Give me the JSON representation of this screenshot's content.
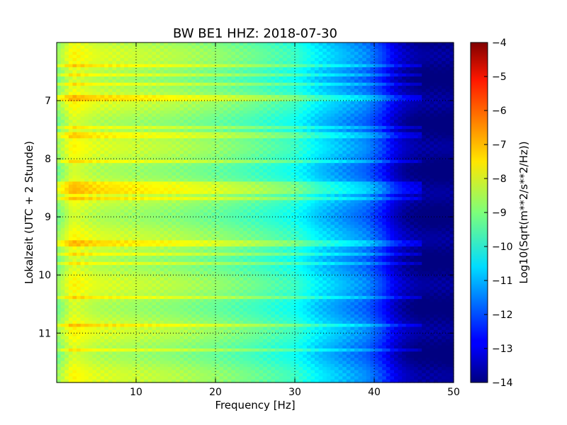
{
  "chart_data": {
    "type": "heatmap",
    "title": "BW BE1 HHZ: 2018-07-30",
    "xlabel": "Frequency [Hz]",
    "ylabel": "Lokalzeit (UTC + 2 Stunde)",
    "colorbar_label": "Log10(Sqrt(m**2/s**2/Hz))",
    "xlim": [
      0,
      50
    ],
    "ylim": [
      11.85,
      6.0
    ],
    "x_ticks": [
      10,
      20,
      30,
      40,
      50
    ],
    "y_ticks": [
      7,
      8,
      9,
      10,
      11
    ],
    "grid": true,
    "colormap": "jet",
    "color_range": [
      -14,
      -4
    ],
    "colorbar_ticks": [
      -4,
      -5,
      -6,
      -7,
      -8,
      -9,
      -10,
      -11,
      -12,
      -13,
      -14
    ],
    "spectrum_profile": {
      "frequency_hz": [
        0,
        2,
        5,
        10,
        15,
        20,
        25,
        30,
        33,
        36,
        39,
        41,
        42.5,
        44,
        46,
        50
      ],
      "log_amplitude": [
        -9.0,
        -7.9,
        -8.3,
        -8.5,
        -8.7,
        -9.0,
        -9.4,
        -9.9,
        -10.6,
        -11.1,
        -11.6,
        -12.3,
        -13.1,
        -13.6,
        -13.9,
        -13.95
      ]
    },
    "loud_times_h": [
      6.4,
      6.55,
      6.7,
      6.95,
      7.45,
      7.6,
      8.05,
      8.45,
      8.55,
      8.7,
      9.45,
      9.65,
      9.8,
      10.4,
      10.85,
      11.3
    ]
  }
}
